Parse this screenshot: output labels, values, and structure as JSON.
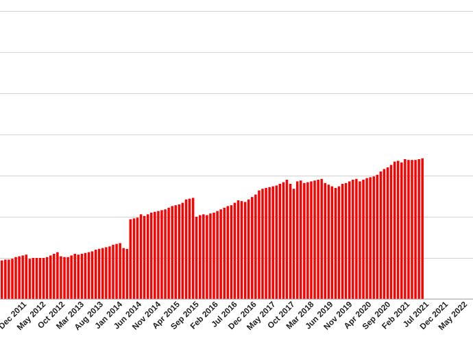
{
  "chart_data": {
    "type": "bar",
    "title": "",
    "xlabel": "",
    "ylabel": "",
    "bar_color": "#ff0000",
    "grid_color": "#d0d0d0",
    "grid": true,
    "x_tick_labels": [
      "Dec 2011",
      "May 2012",
      "Oct 2012",
      "Mar 2013",
      "Aug 2013",
      "Jan 2014",
      "Jun 2014",
      "Nov 2014",
      "Apr 2015",
      "Sep 2015",
      "Feb 2016",
      "Jul 2016",
      "Dec 2016",
      "May 2017",
      "Oct 2017",
      "Mar 2018",
      "Jun 2019",
      "Nov 2019",
      "Apr 2020",
      "Sep 2020",
      "Feb 2021",
      "Jul 2021",
      "Dec 2021",
      "May 2022"
    ],
    "values": [
      47,
      48,
      48,
      49,
      51,
      52,
      53,
      54,
      49,
      50,
      50,
      50,
      50,
      51,
      53,
      55,
      57,
      52,
      51,
      51,
      53,
      55,
      54,
      55,
      56,
      57,
      58,
      60,
      61,
      62,
      63,
      64,
      66,
      67,
      68,
      62,
      61,
      97,
      98,
      99,
      103,
      101,
      103,
      105,
      106,
      107,
      108,
      109,
      111,
      113,
      114,
      115,
      117,
      121,
      122,
      123,
      100,
      102,
      103,
      102,
      104,
      105,
      107,
      109,
      111,
      113,
      114,
      117,
      120,
      119,
      118,
      121,
      124,
      127,
      132,
      134,
      135,
      136,
      137,
      138,
      140,
      142,
      145,
      140,
      134,
      143,
      144,
      141,
      142,
      143,
      144,
      145,
      146,
      141,
      139,
      137,
      135,
      137,
      140,
      141,
      143,
      145,
      146,
      143,
      145,
      147,
      148,
      149,
      151,
      155,
      158,
      160,
      163,
      167,
      168,
      166,
      170,
      169,
      169,
      169,
      170,
      171
    ]
  }
}
